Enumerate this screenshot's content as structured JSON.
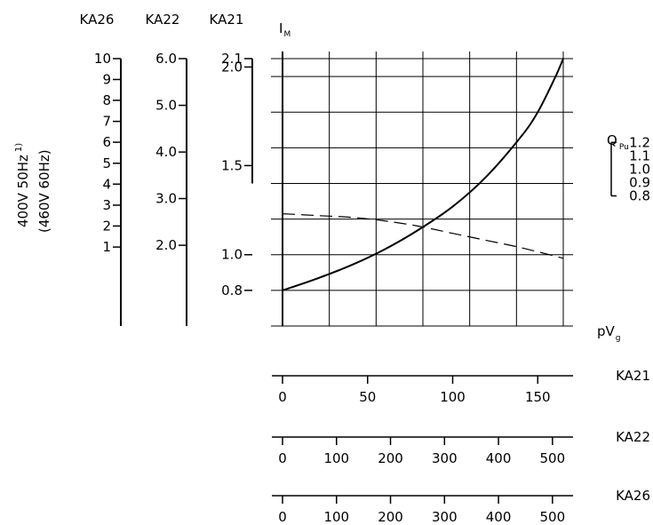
{
  "chart_data": {
    "type": "line",
    "y_label": "I",
    "y_label_sub": "M",
    "x_label": "pV",
    "x_label_sub": "g",
    "right_axis_label": "Q",
    "right_axis_label_sub": "Pu",
    "voltage_label_line1": "400V 50Hz",
    "voltage_label_sup": "1)",
    "voltage_label_line2": "(460V 60Hz)",
    "grid": true,
    "grid_x": [
      0,
      27.5,
      55,
      82.5,
      110,
      137.5,
      165
    ],
    "grid_y": [
      0.6,
      0.8,
      1.0,
      1.2,
      1.4,
      1.6,
      1.8,
      2.0,
      2.1
    ],
    "x_range": [
      0,
      165
    ],
    "y_range": [
      0.6,
      2.1
    ],
    "left_scales": [
      {
        "name": "KA26",
        "ticks": [
          {
            "label": "10",
            "y": 2.1
          },
          {
            "label": "9",
            "y": 1.983
          },
          {
            "label": "8",
            "y": 1.866
          },
          {
            "label": "7",
            "y": 1.748
          },
          {
            "label": "6",
            "y": 1.631
          },
          {
            "label": "5",
            "y": 1.513
          },
          {
            "label": "4",
            "y": 1.396
          },
          {
            "label": "3",
            "y": 1.278
          },
          {
            "label": "2",
            "y": 1.161
          },
          {
            "label": "1",
            "y": 1.043
          }
        ],
        "axis_end_y": 0.6
      },
      {
        "name": "KA22",
        "ticks": [
          {
            "label": "6.0",
            "y": 2.1
          },
          {
            "label": "5.0",
            "y": 1.838
          },
          {
            "label": "4.0",
            "y": 1.576
          },
          {
            "label": "3.0",
            "y": 1.315
          },
          {
            "label": "2.0",
            "y": 1.053
          }
        ],
        "axis_end_y": 0.6
      },
      {
        "name": "KA21",
        "ticks": [
          {
            "label": "2.1",
            "y": 2.1
          },
          {
            "label": "2.0",
            "y": 2.053
          },
          {
            "label": "1.5",
            "y": 1.5
          },
          {
            "label": "1.0",
            "y": 1.0
          },
          {
            "label": "0.8",
            "y": 0.8
          }
        ],
        "axis_end_y": 1.4
      }
    ],
    "right_scale": {
      "ticks": [
        {
          "label": "1.2",
          "y": 1.63
        },
        {
          "label": "1.1",
          "y": 1.555
        },
        {
          "label": "1.0",
          "y": 1.48
        },
        {
          "label": "0.9",
          "y": 1.405
        },
        {
          "label": "0.8",
          "y": 1.33
        }
      ]
    },
    "bottom_scales": [
      {
        "name": "KA21",
        "ticks": [
          {
            "label": "0",
            "v": 0
          },
          {
            "label": "50",
            "v": 50
          },
          {
            "label": "100",
            "v": 100
          },
          {
            "label": "150",
            "v": 150
          }
        ],
        "max": 165
      },
      {
        "name": "KA22",
        "ticks": [
          {
            "label": "0",
            "v": 0
          },
          {
            "label": "100",
            "v": 100
          },
          {
            "label": "200",
            "v": 200
          },
          {
            "label": "300",
            "v": 300
          },
          {
            "label": "400",
            "v": 400
          },
          {
            "label": "500",
            "v": 500
          }
        ],
        "max": 520
      },
      {
        "name": "KA26",
        "ticks": [
          {
            "label": "0",
            "v": 0
          },
          {
            "label": "100",
            "v": 100
          },
          {
            "label": "200",
            "v": 200
          },
          {
            "label": "300",
            "v": 300
          },
          {
            "label": "400",
            "v": 400
          },
          {
            "label": "500",
            "v": 500
          }
        ],
        "max": 520
      }
    ],
    "series": [
      {
        "style": "solid",
        "x": [
          0,
          20,
          40,
          60,
          80,
          100,
          120,
          140,
          150,
          160,
          165
        ],
        "y": [
          0.8,
          0.865,
          0.94,
          1.03,
          1.14,
          1.27,
          1.44,
          1.66,
          1.8,
          1.99,
          2.1
        ]
      },
      {
        "style": "dashed",
        "x": [
          0,
          20,
          40,
          60,
          80,
          100,
          120,
          140,
          165
        ],
        "y": [
          1.23,
          1.22,
          1.21,
          1.19,
          1.16,
          1.12,
          1.08,
          1.04,
          0.98
        ]
      }
    ]
  }
}
